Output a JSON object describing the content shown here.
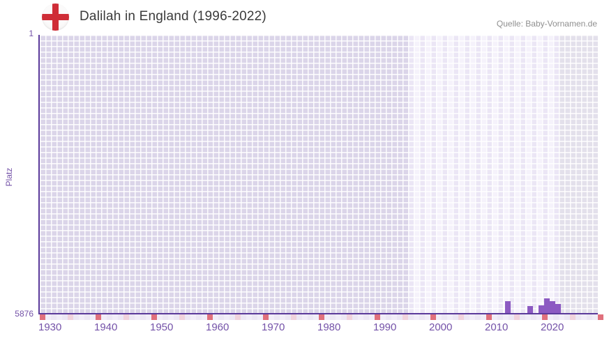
{
  "header": {
    "title": "Dalilah in England (1996-2022)",
    "source": "Quelle: Baby-Vornamen.de"
  },
  "icons": {
    "flag": "england-flag"
  },
  "chart_data": {
    "type": "bar",
    "title": "Dalilah in England (1996-2022)",
    "ylabel": "Platz",
    "xlabel": "",
    "y_axis": {
      "min": 1,
      "max": 5876,
      "inverted": true,
      "tick_labels": [
        "1",
        "5876"
      ]
    },
    "x_axis": {
      "start_year": 1928,
      "end_year": 2028,
      "tick_years": [
        1930,
        1940,
        1950,
        1960,
        1970,
        1980,
        1990,
        2000,
        2010,
        2020
      ]
    },
    "background_zones": [
      {
        "name": "before-records",
        "from": 1928,
        "to": 1994,
        "style": "medium-lavender"
      },
      {
        "name": "record-period",
        "from": 1994,
        "to": 2021,
        "style": "light-alternating"
      },
      {
        "name": "future",
        "from": 2021,
        "to": 2028,
        "style": "gray"
      }
    ],
    "bars": [
      {
        "year": 2012,
        "rank": 5622
      },
      {
        "year": 2016,
        "rank": 5729
      },
      {
        "year": 2018,
        "rank": 5715
      },
      {
        "year": 2019,
        "rank": 5572
      },
      {
        "year": 2020,
        "rank": 5631
      },
      {
        "year": 2021,
        "rank": 5685
      }
    ],
    "grid": true,
    "legend": "none"
  },
  "colors": {
    "bar": "#8c5ac2",
    "axis_line": "#5b3a9b",
    "tick_label": "#7452a8",
    "title": "#3b3b3b",
    "source": "#8f8f8f",
    "flag_red": "#cf2d37",
    "strip_red": "#e0707c",
    "strip_pink": "#f0d2dc",
    "strip_base_a": "#f1edf8",
    "strip_base_b": "#ece7f4"
  }
}
